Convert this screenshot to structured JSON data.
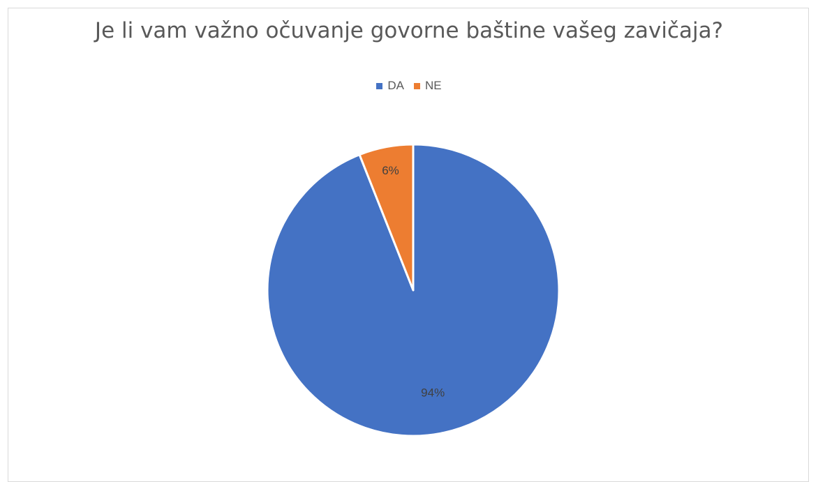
{
  "chart_data": {
    "type": "pie",
    "title": "Je li vam važno očuvanje govorne baštine vašeg zavičaja?",
    "categories": [
      "DA",
      "NE"
    ],
    "values": [
      94,
      6
    ],
    "labels": [
      "94%",
      "6%"
    ],
    "colors": [
      "#4472C4",
      "#ED7D31"
    ],
    "legend_position": "top"
  }
}
